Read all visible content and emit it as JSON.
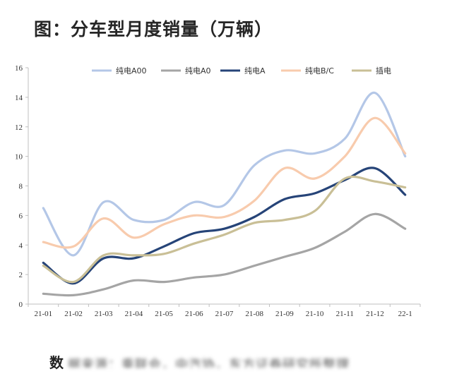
{
  "title": "图：分车型月度销量（万辆）",
  "chart_data": {
    "type": "line",
    "categories": [
      "21-01",
      "21-02",
      "21-03",
      "21-04",
      "21-05",
      "21-06",
      "21-07",
      "21-08",
      "21-09",
      "21-10",
      "21-11",
      "21-12",
      "22-1"
    ],
    "ylim": [
      0,
      16
    ],
    "yticks": [
      0,
      2,
      4,
      6,
      8,
      10,
      12,
      14,
      16
    ],
    "grid": false,
    "legend_position": "top",
    "smooth": true,
    "series": [
      {
        "name": "纯电A00",
        "color": "#b4c7e7",
        "values": [
          6.5,
          3.3,
          6.9,
          5.7,
          5.7,
          6.9,
          6.7,
          9.4,
          10.4,
          10.2,
          11.2,
          14.3,
          10.0
        ]
      },
      {
        "name": "纯电A0",
        "color": "#a5a5a5",
        "values": [
          0.7,
          0.6,
          1.0,
          1.6,
          1.5,
          1.8,
          2.0,
          2.6,
          3.2,
          3.8,
          4.9,
          6.1,
          5.1
        ]
      },
      {
        "name": "纯电A",
        "color": "#264478",
        "values": [
          2.8,
          1.4,
          3.1,
          3.1,
          3.9,
          4.8,
          5.1,
          5.9,
          7.1,
          7.5,
          8.4,
          9.2,
          7.4
        ]
      },
      {
        "name": "纯电B/C",
        "color": "#f8cbad",
        "values": [
          4.2,
          3.9,
          5.8,
          4.5,
          5.4,
          6.0,
          5.9,
          7.0,
          9.2,
          8.5,
          10.0,
          12.6,
          10.2
        ]
      },
      {
        "name": "插电",
        "color": "#c9bf96",
        "values": [
          2.6,
          1.5,
          3.3,
          3.3,
          3.4,
          4.1,
          4.7,
          5.5,
          5.7,
          6.3,
          8.5,
          8.3,
          7.9
        ]
      }
    ]
  },
  "footer": {
    "lead": "数",
    "obscured_text": "据来源：乘联会，中汽协，东方证券研究所整理"
  }
}
